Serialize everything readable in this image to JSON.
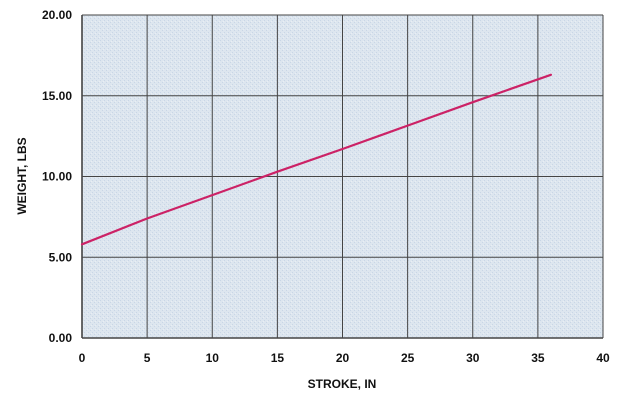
{
  "chart_data": {
    "type": "line",
    "title": "",
    "xlabel": "STROKE, IN",
    "ylabel": "WEIGHT, LBS",
    "xlim": [
      0,
      40
    ],
    "ylim": [
      0,
      20
    ],
    "x_ticks": [
      "0",
      "5",
      "10",
      "15",
      "20",
      "25",
      "30",
      "35",
      "40"
    ],
    "y_ticks": [
      "0.00",
      "5.00",
      "10.00",
      "15.00",
      "20.00"
    ],
    "grid": true,
    "legend": "none",
    "plot_background": "#dde6ef",
    "gridline_color": "#444444",
    "series": [
      {
        "color": "#cc2266",
        "points": [
          {
            "x": 0,
            "y": 5.8
          },
          {
            "x": 5,
            "y": 7.4
          },
          {
            "x": 10,
            "y": 8.85
          },
          {
            "x": 15,
            "y": 10.3
          },
          {
            "x": 20,
            "y": 11.7
          },
          {
            "x": 25,
            "y": 13.15
          },
          {
            "x": 30,
            "y": 14.6
          },
          {
            "x": 36,
            "y": 16.3
          }
        ]
      }
    ]
  }
}
